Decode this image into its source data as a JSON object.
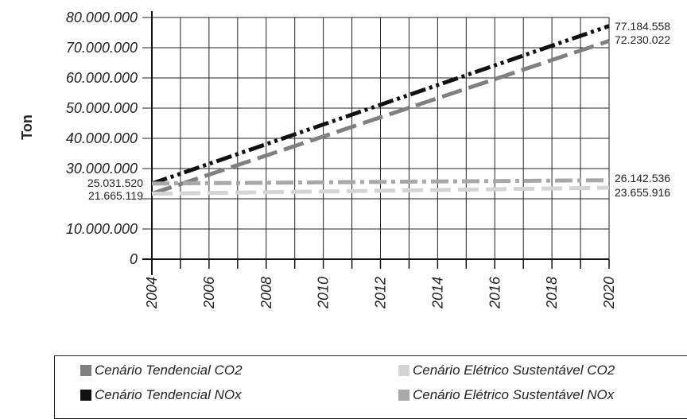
{
  "chart_data": {
    "type": "line",
    "ylabel": "Ton",
    "xlabel": "",
    "ylim": [
      0,
      80000000
    ],
    "y_ticks": [
      "0",
      "10.000.000",
      "30.000.000",
      "40.000.000",
      "50.000.000",
      "60.000.000",
      "70.000.000",
      "80.000.000"
    ],
    "y_tick_values": [
      0,
      10000000,
      30000000,
      40000000,
      50000000,
      60000000,
      70000000,
      80000000
    ],
    "x_ticks": [
      "2004",
      "2006",
      "2008",
      "2010",
      "2012",
      "2014",
      "2016",
      "2018",
      "2020"
    ],
    "xlim": [
      2004,
      2020
    ],
    "grid": true,
    "legend_position": "bottom",
    "series": [
      {
        "name": "Cenário Tendencial CO2",
        "x": [
          2004,
          2020
        ],
        "values": [
          21665119,
          72230022
        ],
        "color": "#808080",
        "dash": "long-dash"
      },
      {
        "name": "Cenário Elétrico Sustentável CO2",
        "x": [
          2004,
          2020
        ],
        "values": [
          21665119,
          23655916
        ],
        "color": "#d4d4d4",
        "dash": "long-dash"
      },
      {
        "name": "Cenário Tendencial NOx",
        "x": [
          2004,
          2020
        ],
        "values": [
          25031520,
          77184558
        ],
        "color": "#111111",
        "dash": "dash-dot-dot"
      },
      {
        "name": "Cenário Elétrico Sustentável NOx",
        "x": [
          2004,
          2020
        ],
        "values": [
          25031520,
          26142536
        ],
        "color": "#a8a8a8",
        "dash": "dash-dot"
      }
    ],
    "annotations": [
      {
        "text": "77.184.558",
        "series": 2,
        "at": "end"
      },
      {
        "text": "72.230.022",
        "series": 0,
        "at": "end"
      },
      {
        "text": "26.142.536",
        "series": 3,
        "at": "end"
      },
      {
        "text": "23.655.916",
        "series": 1,
        "at": "end"
      },
      {
        "text": "25.031.520",
        "series": 3,
        "at": "start"
      },
      {
        "text": "21.665.119",
        "series": 1,
        "at": "start"
      }
    ]
  },
  "legend": {
    "items": [
      {
        "label": "Cenário Tendencial CO2",
        "color": "#808080"
      },
      {
        "label": "Cenário Elétrico Sustentável CO2",
        "color": "#d4d4d4"
      },
      {
        "label": "Cenário Tendencial NOx",
        "color": "#111111"
      },
      {
        "label": "Cenário Elétrico Sustentável NOx",
        "color": "#a8a8a8"
      }
    ]
  }
}
